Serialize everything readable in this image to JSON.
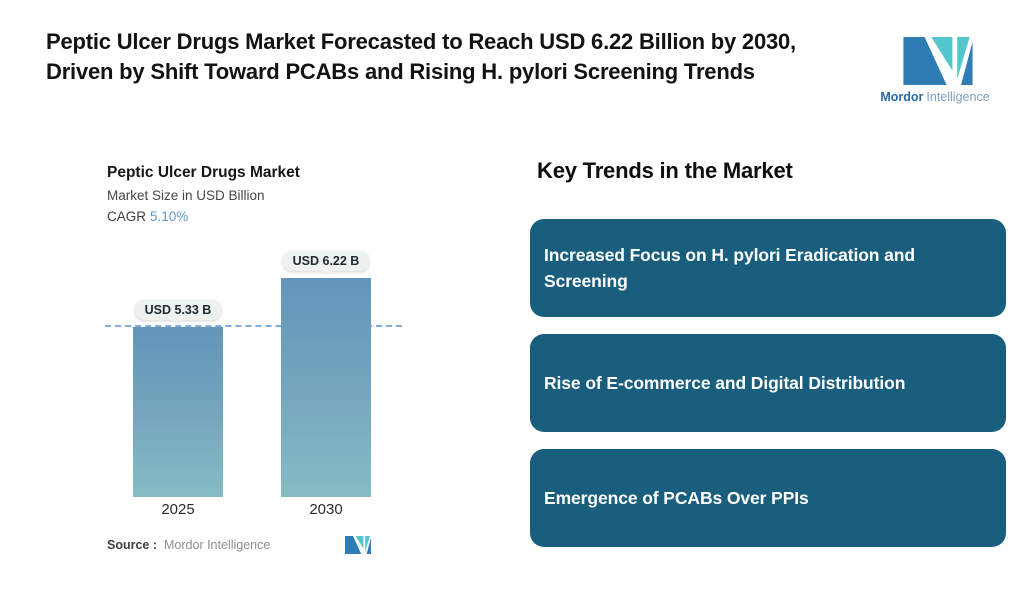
{
  "page": {
    "title": "Peptic Ulcer Drugs Market Forecasted to Reach USD 6.22 Billion by 2030, Driven by Shift Toward PCABs and Rising H. pylori Screening Trends"
  },
  "brand": {
    "name_bold": "Mordor",
    "name_light": "Intelligence"
  },
  "colors": {
    "card": "#1a5e7e",
    "bar_top": "#6295ba",
    "bar_bottom": "#85bcc4",
    "dashed": "#6b9ed6",
    "accent_blue": "#5f97cb",
    "pill_bg": "#edf1ef",
    "logo_blue": "#2e7cb4",
    "logo_teal": "#56c6ce"
  },
  "chart": {
    "title": "Peptic Ulcer Drugs Market",
    "subtitle": "Market Size in USD Billion",
    "cagr_label": "CAGR",
    "cagr_value": "5.10%",
    "source_label": "Source :",
    "source_value": "Mordor Intelligence"
  },
  "chart_data": {
    "type": "bar",
    "title": "Peptic Ulcer Drugs Market",
    "ylabel": "Market Size in USD Billion",
    "categories": [
      "2025",
      "2030"
    ],
    "values": [
      5.33,
      6.22
    ],
    "annotations": [
      "USD 5.33 B",
      "USD 6.22 B"
    ],
    "cagr": "5.10%",
    "unit": "USD Billion",
    "dashed_reference_line_at": 5.33,
    "grid": false,
    "legend": false,
    "ylim": [
      4.5,
      6.5
    ]
  },
  "key_trends": {
    "heading": "Key Trends in the Market",
    "cards": [
      {
        "text": "Increased Focus on H. pylori Eradication and Screening"
      },
      {
        "text": "Rise of E-commerce and Digital Distribution"
      },
      {
        "text": "Emergence of PCABs Over PPIs"
      }
    ]
  }
}
